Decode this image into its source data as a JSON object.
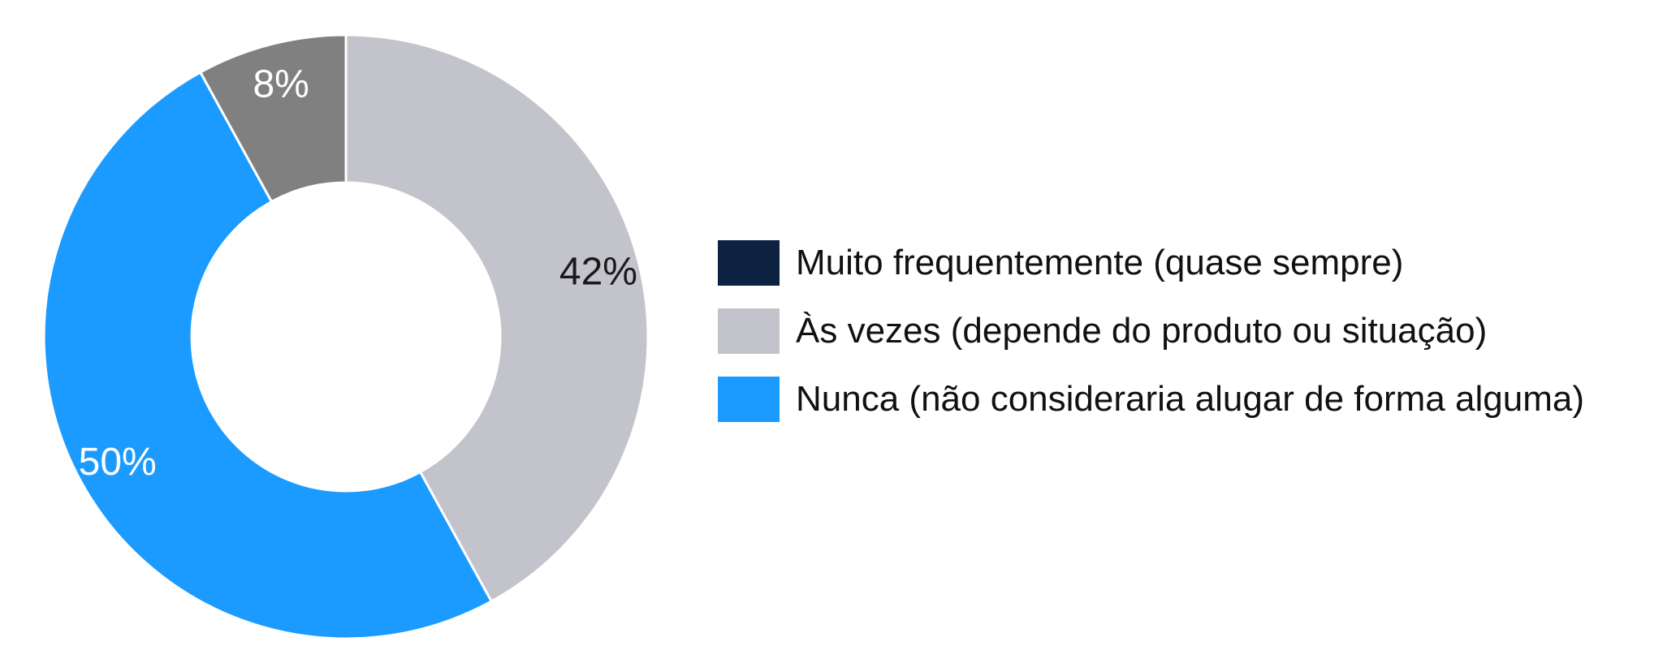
{
  "chart_data": {
    "type": "pie",
    "variant": "donut",
    "legend_position": "right",
    "series": [
      {
        "name": "Muito frequentemente (quase sempre)",
        "value": 0,
        "label": "",
        "color": "#0d2240",
        "label_color": "#ffffff"
      },
      {
        "name": "Às vezes (depende do produto ou situação)",
        "value": 42,
        "label": "42%",
        "color": "#c3c3cc",
        "label_color": "#1a1a1a"
      },
      {
        "name": "Nunca (não consideraria alugar de forma alguma)",
        "value": 50,
        "label": "50%",
        "color": "#1b9bff",
        "label_color": "#ffffff"
      },
      {
        "name": "",
        "value": 8,
        "label": "8%",
        "color": "#808080",
        "label_color": "#ffffff"
      }
    ]
  },
  "legend": {
    "items": [
      {
        "label": "Muito frequentemente (quase sempre)",
        "color": "#0d2240"
      },
      {
        "label": "Às vezes (depende do produto ou situação)",
        "color": "#c3c3cc"
      },
      {
        "label": "Nunca (não consideraria alugar de forma alguma)",
        "color": "#1b9bff"
      }
    ]
  }
}
